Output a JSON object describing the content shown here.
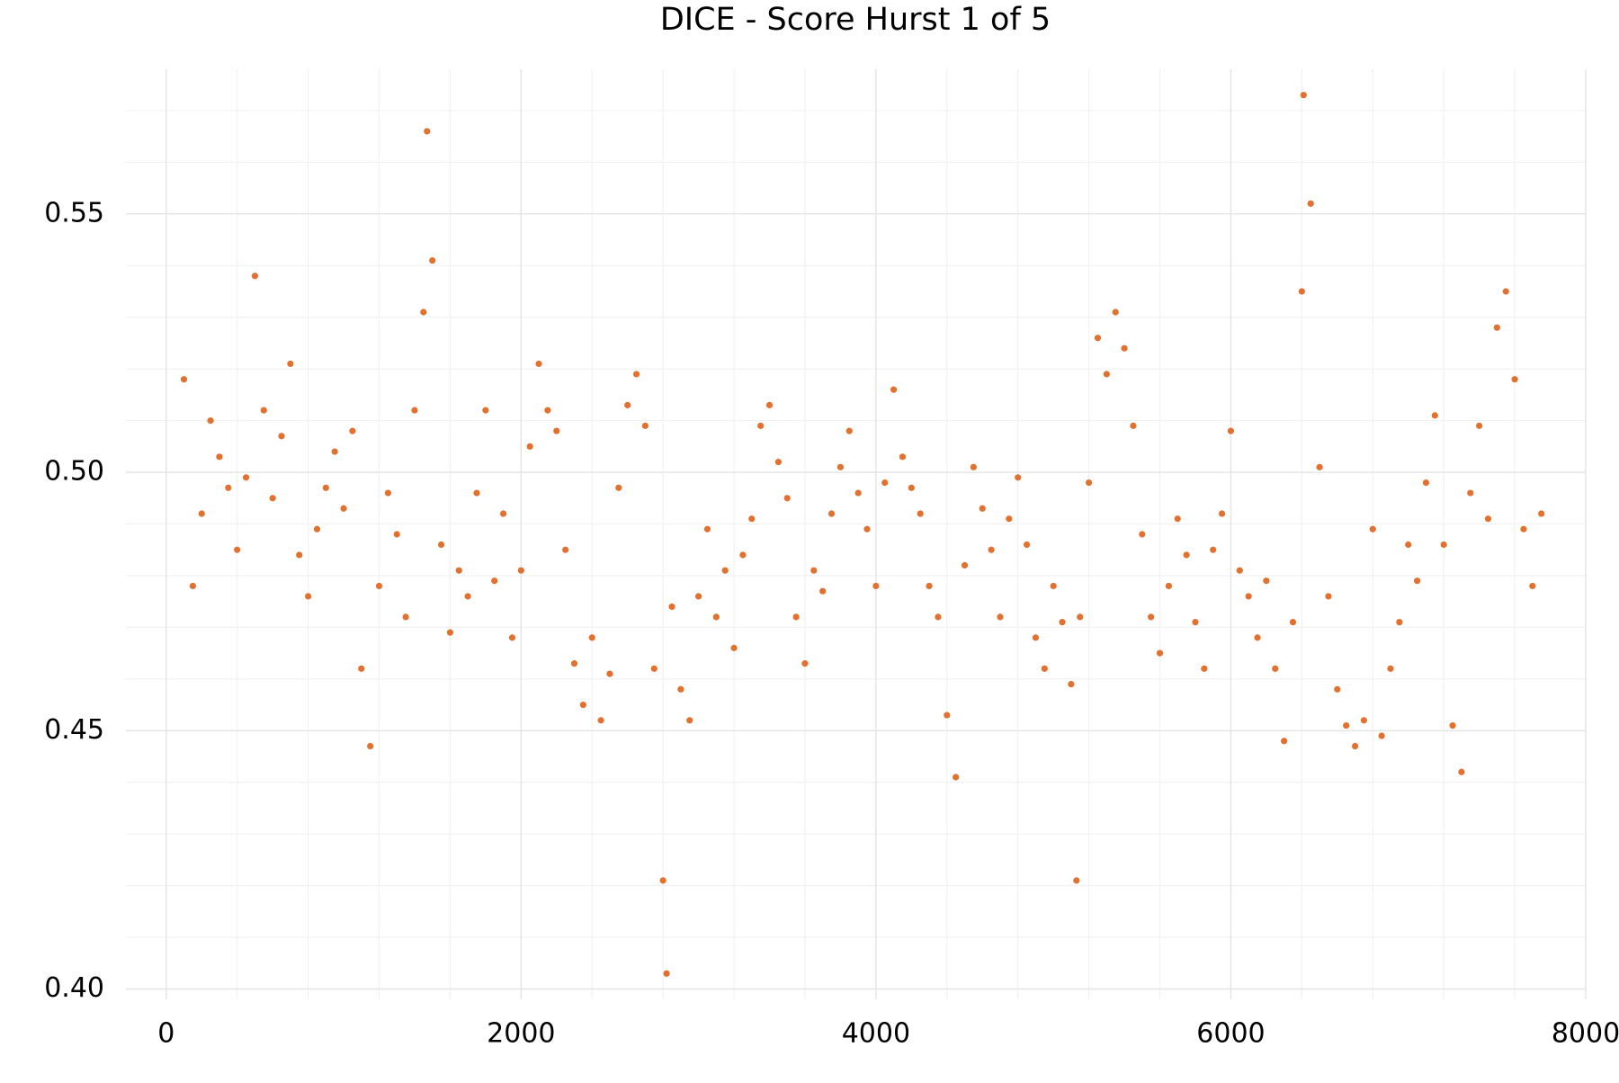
{
  "chart_data": {
    "type": "scatter",
    "title": "DICE - Score Hurst 1 of 5",
    "color": "#e2712f",
    "xlim": [
      -227,
      8000
    ],
    "ylim": [
      0.398,
      0.578
    ],
    "xticks": [
      0,
      2000,
      4000,
      6000,
      8000
    ],
    "yticks": [
      {
        "value": 0.4,
        "label": "0.40"
      },
      0.45,
      {
        "value": 0.5,
        "label": "0.50"
      },
      0.55
    ],
    "x_minor_ticks": [
      400,
      800,
      1200,
      1600,
      2400,
      2800,
      3200,
      3600,
      4400,
      4800,
      5200,
      5600,
      6400,
      6800,
      7200,
      7600
    ],
    "y_minor_ticks": [
      0.41,
      0.42,
      0.43,
      0.44,
      0.46,
      0.47,
      0.48,
      0.49,
      0.51,
      0.52,
      0.53,
      0.54,
      0.56,
      0.57
    ],
    "grid": true,
    "x": [
      100,
      150,
      200,
      250,
      300,
      350,
      400,
      450,
      500,
      550,
      600,
      650,
      700,
      750,
      800,
      850,
      900,
      950,
      1000,
      1050,
      1100,
      1150,
      1200,
      1250,
      1300,
      1350,
      1400,
      1450,
      1500,
      1550,
      1600,
      1650,
      1700,
      1750,
      1800,
      1850,
      1900,
      1950,
      2000,
      2050,
      2100,
      2150,
      2200,
      2250,
      2300,
      2350,
      2400,
      2450,
      2500,
      2550,
      2600,
      2650,
      2700,
      2750,
      2800,
      2850,
      2900,
      2950,
      3000,
      3050,
      3100,
      3150,
      3200,
      3250,
      3300,
      3350,
      3400,
      3450,
      3500,
      3550,
      3600,
      3650,
      3700,
      3750,
      3800,
      3850,
      3900,
      3950,
      4000,
      4050,
      4100,
      4150,
      4200,
      4250,
      4300,
      4350,
      4400,
      4450,
      4500,
      4550,
      4600,
      4650,
      4700,
      4750,
      4800,
      4850,
      4900,
      4950,
      5000,
      5050,
      5100,
      5150,
      5200,
      5250,
      5300,
      5350,
      5400,
      5450,
      5500,
      5550,
      5600,
      5650,
      5700,
      5750,
      5800,
      5850,
      5900,
      5950,
      6000,
      6050,
      6100,
      6150,
      6200,
      6250,
      6300,
      6350,
      6400,
      6450,
      6500,
      6550,
      6600,
      6650,
      6700,
      6750,
      6800,
      6850,
      6900,
      6950,
      7000,
      7050,
      7100,
      7150,
      7200,
      7250,
      7300,
      7350,
      7400,
      7450,
      7500,
      7550,
      7600,
      7650,
      7700,
      7750,
      2820,
      6410,
      1470,
      5130
    ],
    "values": [
      0.518,
      0.478,
      0.492,
      0.51,
      0.503,
      0.497,
      0.485,
      0.499,
      0.538,
      0.512,
      0.495,
      0.507,
      0.521,
      0.484,
      0.476,
      0.489,
      0.497,
      0.504,
      0.493,
      0.508,
      0.462,
      0.447,
      0.478,
      0.496,
      0.488,
      0.472,
      0.512,
      0.531,
      0.541,
      0.486,
      0.469,
      0.481,
      0.476,
      0.496,
      0.512,
      0.479,
      0.492,
      0.468,
      0.481,
      0.505,
      0.521,
      0.512,
      0.508,
      0.485,
      0.463,
      0.455,
      0.468,
      0.452,
      0.461,
      0.497,
      0.513,
      0.519,
      0.509,
      0.462,
      0.421,
      0.474,
      0.458,
      0.452,
      0.476,
      0.489,
      0.472,
      0.481,
      0.466,
      0.484,
      0.491,
      0.509,
      0.513,
      0.502,
      0.495,
      0.472,
      0.463,
      0.481,
      0.477,
      0.492,
      0.501,
      0.508,
      0.496,
      0.489,
      0.478,
      0.498,
      0.516,
      0.503,
      0.497,
      0.492,
      0.478,
      0.472,
      0.453,
      0.441,
      0.482,
      0.501,
      0.493,
      0.485,
      0.472,
      0.491,
      0.499,
      0.486,
      0.468,
      0.462,
      0.478,
      0.471,
      0.459,
      0.472,
      0.498,
      0.526,
      0.519,
      0.531,
      0.524,
      0.509,
      0.488,
      0.472,
      0.465,
      0.478,
      0.491,
      0.484,
      0.471,
      0.462,
      0.485,
      0.492,
      0.508,
      0.481,
      0.476,
      0.468,
      0.479,
      0.462,
      0.448,
      0.471,
      0.535,
      0.552,
      0.501,
      0.476,
      0.458,
      0.451,
      0.447,
      0.452,
      0.489,
      0.449,
      0.462,
      0.471,
      0.486,
      0.479,
      0.498,
      0.511,
      0.486,
      0.451,
      0.442,
      0.496,
      0.509,
      0.491,
      0.528,
      0.535,
      0.518,
      0.489,
      0.478,
      0.492,
      0.403,
      0.573,
      0.566,
      0.421
    ]
  }
}
